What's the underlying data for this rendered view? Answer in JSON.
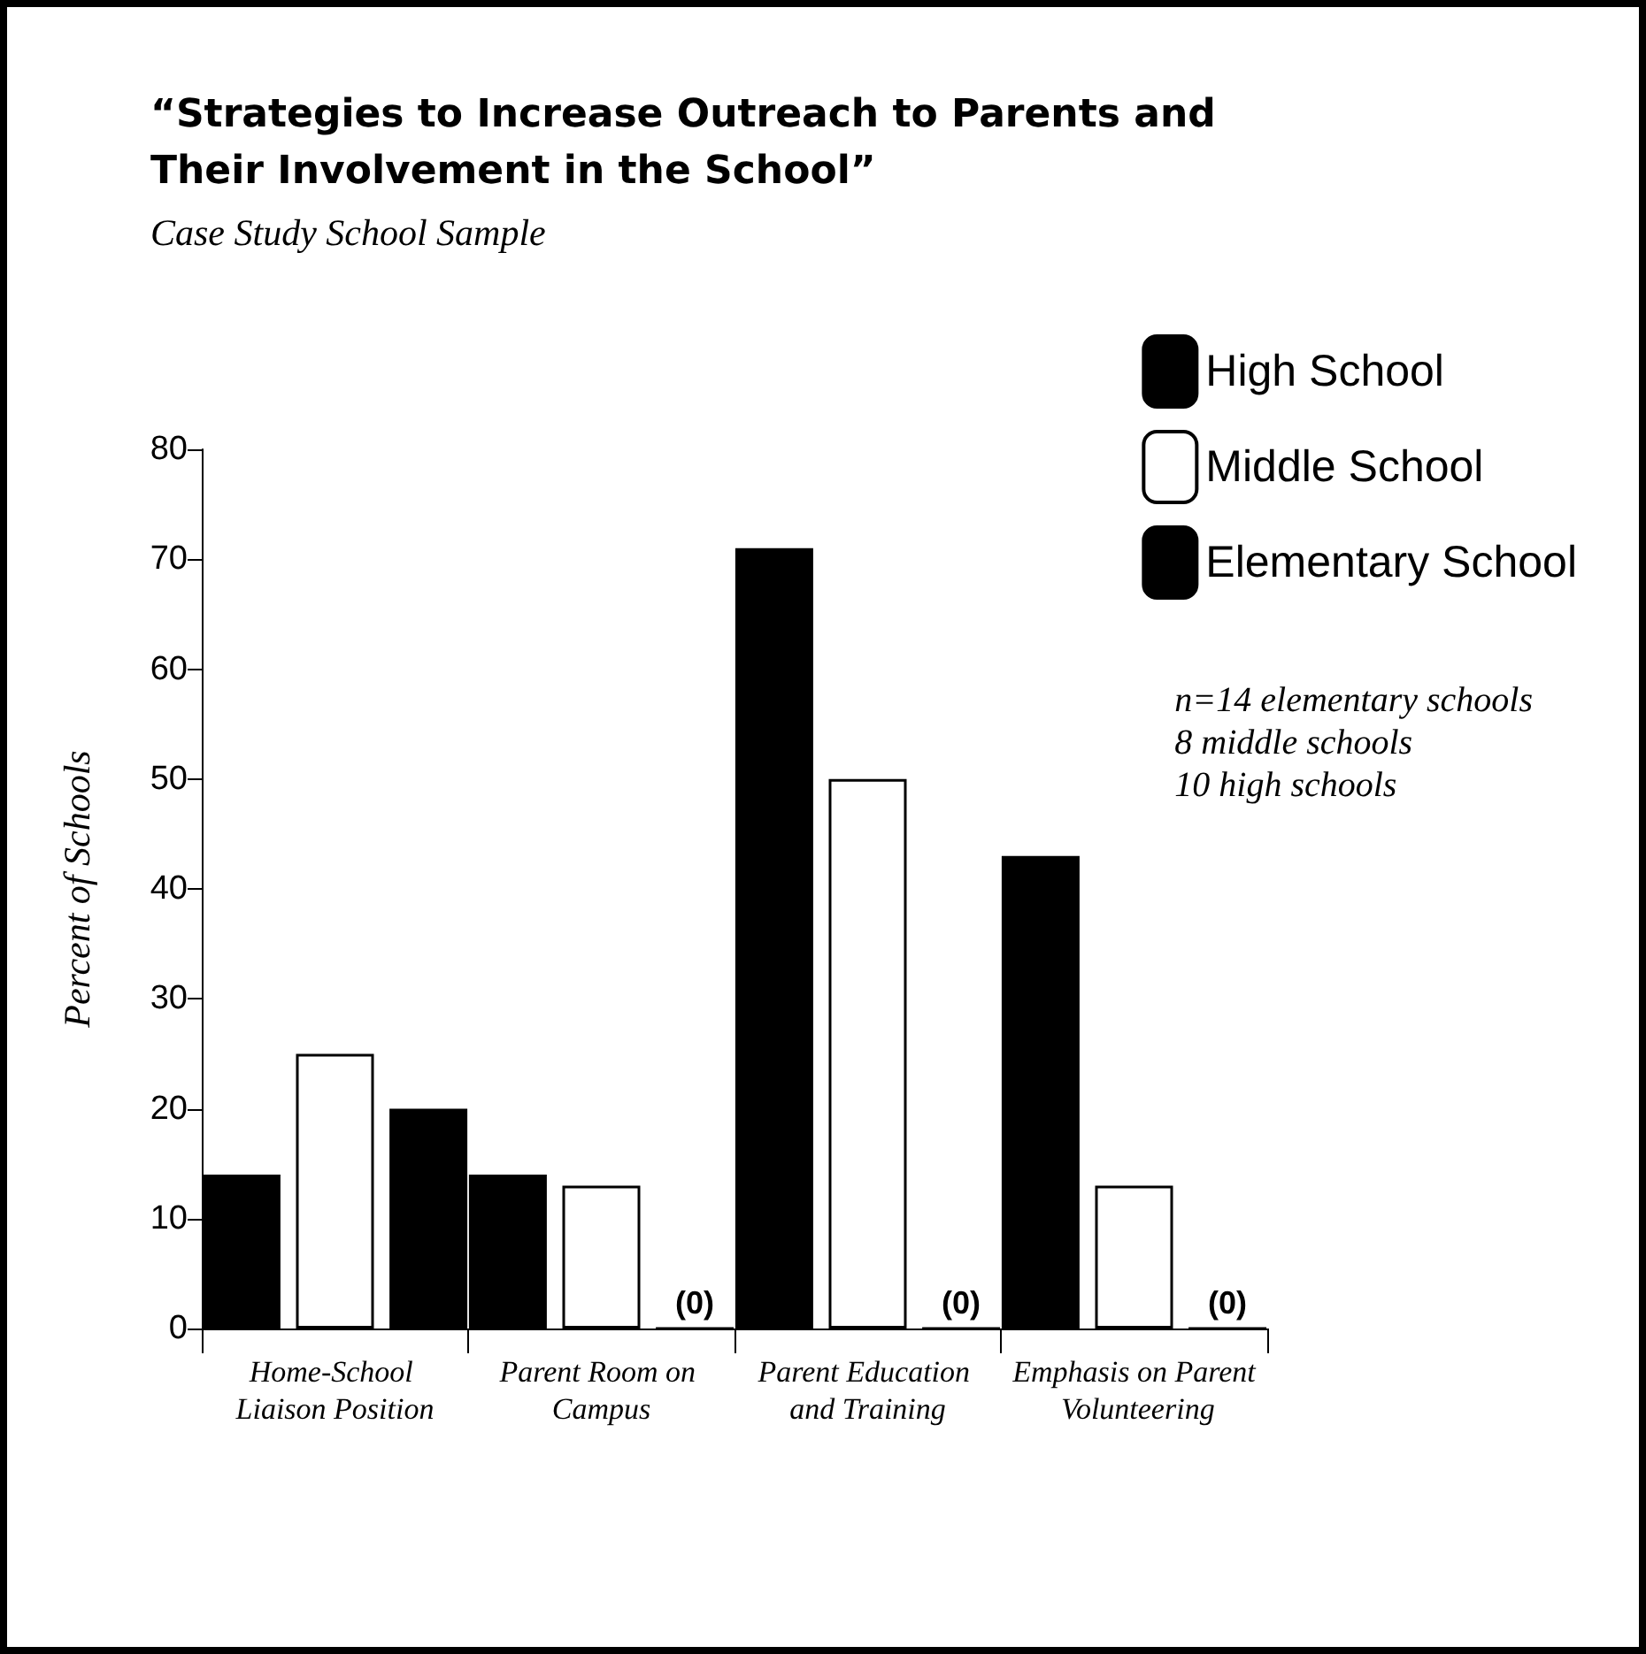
{
  "chart_data": {
    "type": "bar",
    "title": "“Strategies to Increase Outreach to Parents and Their Involvement in the School”",
    "subtitle": "Case Study School Sample",
    "ylabel": "Percent of Schools",
    "categories": [
      "Home-School Liaison Position",
      "Parent Room on Campus",
      "Parent Education and Training",
      "Emphasis on Parent Volunteering"
    ],
    "series": [
      {
        "name": "Elementary School",
        "color": "#000000",
        "values": [
          14,
          14,
          71,
          43
        ]
      },
      {
        "name": "Middle School",
        "color": "#ffffff",
        "values": [
          25,
          13,
          50,
          13
        ]
      },
      {
        "name": "High School",
        "color": "#000000",
        "values": [
          20,
          0,
          0,
          0
        ],
        "value_labels": [
          null,
          "(0)",
          "(0)",
          "(0)"
        ]
      }
    ],
    "ylim": [
      0,
      80
    ],
    "yticks": [
      0,
      10,
      20,
      30,
      40,
      50,
      60,
      70,
      80
    ],
    "grid": false,
    "legend": "top right",
    "annotations": [
      "n=14 elementary schools\n8 middle schools\n10 high schools"
    ]
  }
}
